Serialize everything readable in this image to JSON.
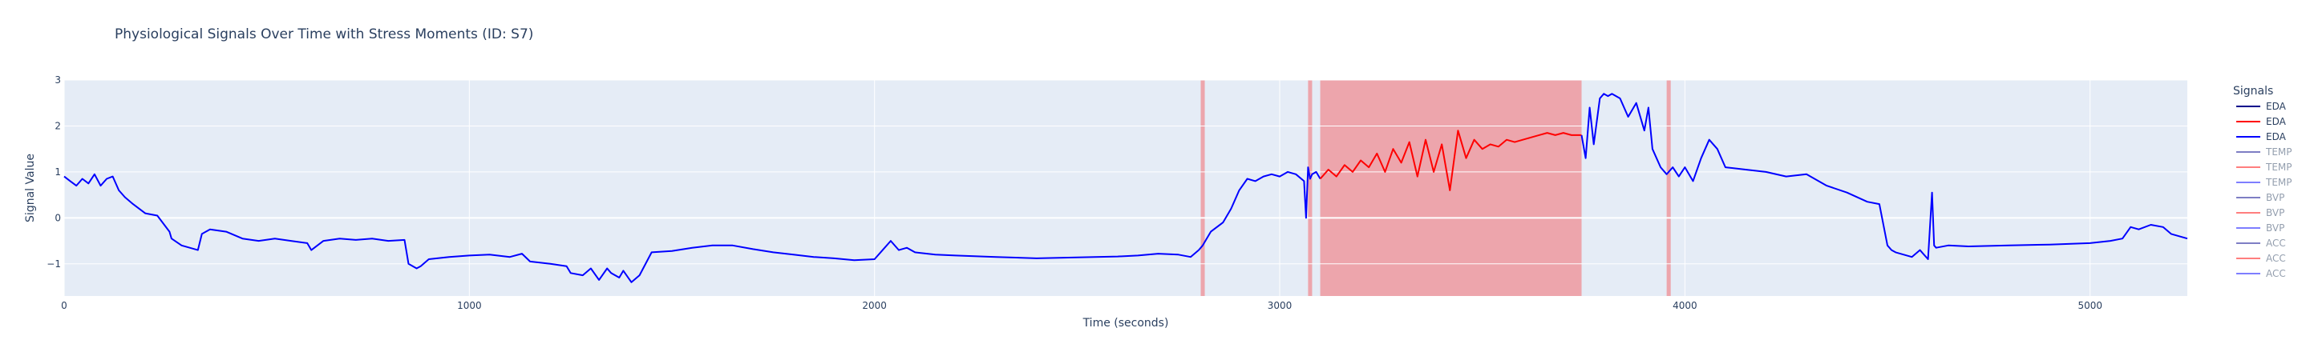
{
  "chart_data": {
    "type": "line",
    "title": "Physiological Signals Over Time with Stress Moments (ID: S7)",
    "xlabel": "Time (seconds)",
    "ylabel": "Signal Value",
    "xlim": [
      0,
      5240
    ],
    "ylim": [
      -1.7,
      3.0
    ],
    "xticks": [
      0,
      1000,
      2000,
      3000,
      4000,
      5000
    ],
    "yticks": [
      -1,
      0,
      1,
      2,
      3
    ],
    "grid": true,
    "legend": {
      "title": "Signals",
      "placement": "right",
      "items": [
        {
          "name": "EDA",
          "color": "#00008b",
          "visible": true
        },
        {
          "name": "EDA",
          "color": "#ff0000",
          "visible": true
        },
        {
          "name": "EDA",
          "color": "#0000ff",
          "visible": true
        },
        {
          "name": "TEMP",
          "color": "#00008b",
          "visible": false
        },
        {
          "name": "TEMP",
          "color": "#ff0000",
          "visible": false
        },
        {
          "name": "TEMP",
          "color": "#0000ff",
          "visible": false
        },
        {
          "name": "BVP",
          "color": "#00008b",
          "visible": false
        },
        {
          "name": "BVP",
          "color": "#ff0000",
          "visible": false
        },
        {
          "name": "BVP",
          "color": "#0000ff",
          "visible": false
        },
        {
          "name": "ACC",
          "color": "#00008b",
          "visible": false
        },
        {
          "name": "ACC",
          "color": "#ff0000",
          "visible": false
        },
        {
          "name": "ACC",
          "color": "#0000ff",
          "visible": false
        }
      ]
    },
    "stress_regions": [
      {
        "x0": 2805,
        "x1": 2815
      },
      {
        "x0": 3070,
        "x1": 3080
      },
      {
        "x0": 3100,
        "x1": 3745
      },
      {
        "x0": 3955,
        "x1": 3965
      }
    ],
    "series": [
      {
        "name": "EDA",
        "color": "#0000ff",
        "x": [
          0,
          15,
          30,
          45,
          60,
          75,
          90,
          105,
          120,
          135,
          150,
          170,
          200,
          230,
          260,
          265,
          290,
          330,
          340,
          360,
          400,
          440,
          480,
          520,
          560,
          600,
          610,
          640,
          680,
          720,
          760,
          800,
          840,
          850,
          870,
          880,
          900,
          950,
          1000,
          1050,
          1100,
          1130,
          1150,
          1200,
          1240,
          1250,
          1280,
          1300,
          1320,
          1340,
          1350,
          1370,
          1380,
          1400,
          1420,
          1450,
          1500,
          1550,
          1600,
          1650,
          1700,
          1750,
          1800,
          1850,
          1900,
          1950,
          2000,
          2020,
          2040,
          2060,
          2080,
          2100,
          2150,
          2200,
          2300,
          2400,
          2500,
          2600,
          2650,
          2700,
          2750,
          2780,
          2800,
          2810,
          2830,
          2860,
          2880,
          2900,
          2920,
          2940,
          2960,
          2980,
          3000,
          3020,
          3040,
          3060,
          3065,
          3070,
          3075,
          3080,
          3090,
          3100
        ],
        "y": [
          0.9,
          0.8,
          0.7,
          0.85,
          0.75,
          0.95,
          0.7,
          0.85,
          0.9,
          0.6,
          0.45,
          0.3,
          0.1,
          0.05,
          -0.3,
          -0.45,
          -0.6,
          -0.7,
          -0.35,
          -0.25,
          -0.3,
          -0.45,
          -0.5,
          -0.45,
          -0.5,
          -0.55,
          -0.7,
          -0.5,
          -0.45,
          -0.48,
          -0.45,
          -0.5,
          -0.48,
          -1.0,
          -1.1,
          -1.05,
          -0.9,
          -0.85,
          -0.82,
          -0.8,
          -0.85,
          -0.78,
          -0.95,
          -1.0,
          -1.05,
          -1.2,
          -1.25,
          -1.1,
          -1.35,
          -1.1,
          -1.2,
          -1.3,
          -1.15,
          -1.4,
          -1.25,
          -0.75,
          -0.72,
          -0.65,
          -0.6,
          -0.6,
          -0.68,
          -0.75,
          -0.8,
          -0.85,
          -0.88,
          -0.92,
          -0.9,
          -0.7,
          -0.5,
          -0.7,
          -0.65,
          -0.75,
          -0.8,
          -0.82,
          -0.85,
          -0.88,
          -0.86,
          -0.84,
          -0.82,
          -0.78,
          -0.8,
          -0.85,
          -0.7,
          -0.6,
          -0.3,
          -0.1,
          0.2,
          0.6,
          0.85,
          0.8,
          0.9,
          0.95,
          0.9,
          1.0,
          0.95,
          0.8,
          0.0,
          1.1,
          0.85,
          0.95,
          1.0,
          0.85
        ]
      },
      {
        "name": "EDA",
        "color": "#ff0000",
        "x": [
          3100,
          3120,
          3140,
          3160,
          3180,
          3200,
          3220,
          3240,
          3260,
          3280,
          3300,
          3320,
          3340,
          3360,
          3380,
          3400,
          3420,
          3440,
          3460,
          3480,
          3500,
          3520,
          3540,
          3560,
          3580,
          3600,
          3620,
          3640,
          3660,
          3680,
          3700,
          3720,
          3745
        ],
        "y": [
          0.85,
          1.05,
          0.9,
          1.15,
          1.0,
          1.25,
          1.1,
          1.4,
          1.0,
          1.5,
          1.2,
          1.65,
          0.9,
          1.7,
          1.0,
          1.6,
          0.6,
          1.9,
          1.3,
          1.7,
          1.5,
          1.6,
          1.55,
          1.7,
          1.65,
          1.7,
          1.75,
          1.8,
          1.85,
          1.8,
          1.85,
          1.8,
          1.8
        ]
      },
      {
        "name": "EDA",
        "color": "#0000ff",
        "x": [
          3745,
          3755,
          3765,
          3775,
          3790,
          3800,
          3810,
          3820,
          3840,
          3860,
          3880,
          3900,
          3910,
          3920,
          3930,
          3940,
          3955,
          3970,
          3985,
          4000,
          4020,
          4040,
          4060,
          4080,
          4100,
          4150,
          4200,
          4250,
          4300,
          4350,
          4400,
          4450,
          4480,
          4500,
          4510,
          4520,
          4540,
          4560,
          4580,
          4600,
          4610,
          4615,
          4620,
          4650,
          4700,
          4800,
          4900,
          5000,
          5050,
          5080,
          5100,
          5120,
          5150,
          5180,
          5200,
          5220,
          5240
        ],
        "y": [
          1.8,
          1.3,
          2.4,
          1.6,
          2.6,
          2.7,
          2.65,
          2.7,
          2.6,
          2.2,
          2.5,
          1.9,
          2.4,
          1.5,
          1.3,
          1.1,
          0.95,
          1.1,
          0.9,
          1.1,
          0.8,
          1.3,
          1.7,
          1.5,
          1.1,
          1.05,
          1.0,
          0.9,
          0.95,
          0.7,
          0.55,
          0.35,
          0.3,
          -0.6,
          -0.7,
          -0.75,
          -0.8,
          -0.85,
          -0.7,
          -0.9,
          0.55,
          -0.6,
          -0.65,
          -0.6,
          -0.62,
          -0.6,
          -0.58,
          -0.55,
          -0.5,
          -0.45,
          -0.2,
          -0.25,
          -0.15,
          -0.2,
          -0.35,
          -0.4,
          -0.45
        ]
      }
    ]
  }
}
